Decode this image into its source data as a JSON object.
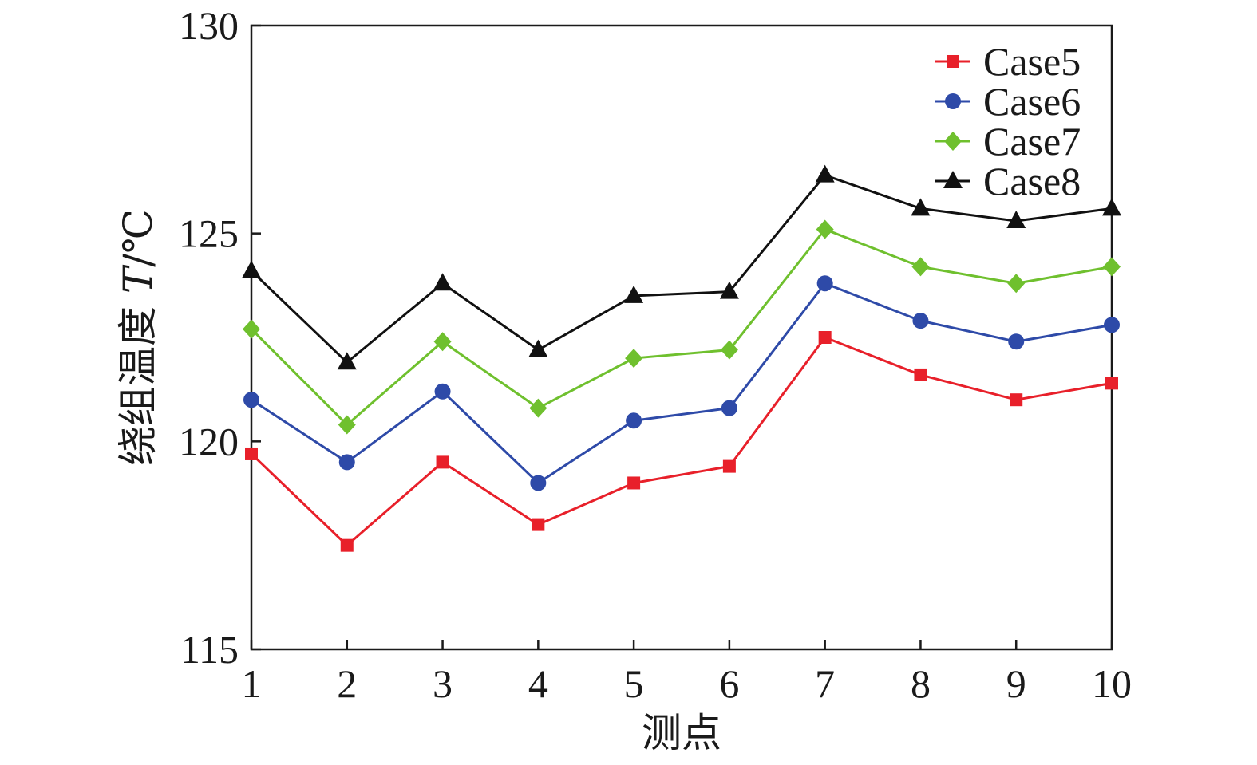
{
  "chart_data": {
    "type": "line",
    "xlabel": "测点",
    "ylabel": "绕组温度 T/℃",
    "ylabel_parts": {
      "text": "绕组温度 ",
      "symbol": "T",
      "unit": "/℃"
    },
    "x": [
      1,
      2,
      3,
      4,
      5,
      6,
      7,
      8,
      9,
      10
    ],
    "x_tick_labels": [
      "1",
      "2",
      "3",
      "4",
      "5",
      "6",
      "7",
      "8",
      "9",
      "10"
    ],
    "y_tick_values": [
      115,
      120,
      125,
      130
    ],
    "y_tick_labels": [
      "115",
      "120",
      "125",
      "130"
    ],
    "xlim": [
      1,
      10
    ],
    "ylim": [
      115,
      130
    ],
    "grid": false,
    "legend_position": "top-right",
    "series": [
      {
        "name": "Case5",
        "color": "#e8202a",
        "marker": "square",
        "values": [
          119.7,
          117.5,
          119.5,
          118.0,
          119.0,
          119.4,
          122.5,
          121.6,
          121.0,
          121.4
        ]
      },
      {
        "name": "Case6",
        "color": "#2e4aa8",
        "marker": "circle",
        "values": [
          121.0,
          119.5,
          121.2,
          119.0,
          120.5,
          120.8,
          123.8,
          122.9,
          122.4,
          122.8
        ]
      },
      {
        "name": "Case7",
        "color": "#6fc02e",
        "marker": "diamond",
        "values": [
          122.7,
          120.4,
          122.4,
          120.8,
          122.0,
          122.2,
          125.1,
          124.2,
          123.8,
          124.2
        ]
      },
      {
        "name": "Case8",
        "color": "#111111",
        "marker": "triangle",
        "values": [
          124.1,
          121.9,
          123.8,
          122.2,
          123.5,
          123.6,
          126.4,
          125.6,
          125.3,
          125.6
        ]
      }
    ]
  }
}
